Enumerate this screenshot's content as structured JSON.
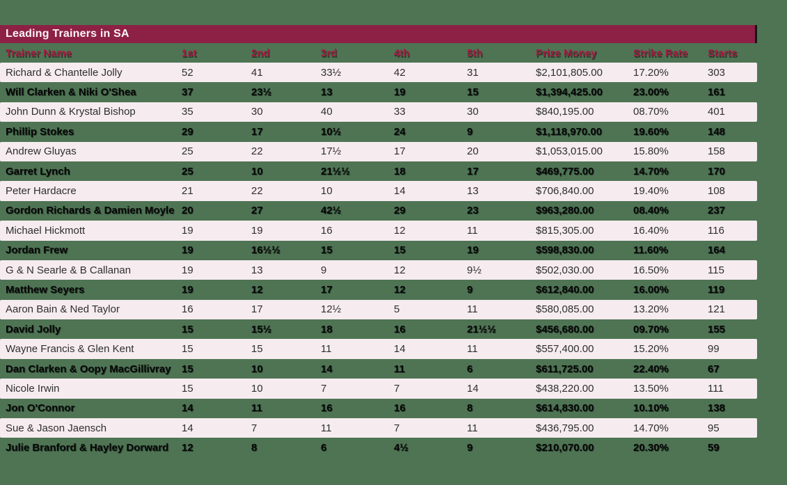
{
  "colors": {
    "background_green": "#4E7454",
    "title_bar_maroon": "#8D2045",
    "header_text_crimson": "#A21D41",
    "row_pink": "#F6ECEF",
    "title_text": "#FAF5F6",
    "row_text_dark": "#2E2E2E"
  },
  "chart_data": {
    "type": "table",
    "title": "Leading Trainers in SA",
    "columns": [
      "Trainer Name",
      "1st",
      "2nd",
      "3rd",
      "4th",
      "5th",
      "Prize Money",
      "Strike Rate",
      "Starts"
    ],
    "rows": [
      [
        "Richard & Chantelle Jolly",
        "52",
        "41",
        "33½",
        "42",
        "31",
        "$2,101,805.00",
        "17.20%",
        "303"
      ],
      [
        "Will Clarken & Niki O'Shea",
        "37",
        "23½",
        "13",
        "19",
        "15",
        "$1,394,425.00",
        "23.00%",
        "161"
      ],
      [
        "John Dunn & Krystal Bishop",
        "35",
        "30",
        "40",
        "33",
        "30",
        "$840,195.00",
        "08.70%",
        "401"
      ],
      [
        "Phillip Stokes",
        "29",
        "17",
        "10½",
        "24",
        "9",
        "$1,118,970.00",
        "19.60%",
        "148"
      ],
      [
        "Andrew Gluyas",
        "25",
        "22",
        "17½",
        "17",
        "20",
        "$1,053,015.00",
        "15.80%",
        "158"
      ],
      [
        "Garret Lynch",
        "25",
        "10",
        "21½½",
        "18",
        "17",
        "$469,775.00",
        "14.70%",
        "170"
      ],
      [
        "Peter Hardacre",
        "21",
        "22",
        "10",
        "14",
        "13",
        "$706,840.00",
        "19.40%",
        "108"
      ],
      [
        "Gordon Richards & Damien Moyle",
        "20",
        "27",
        "42½",
        "29",
        "23",
        "$963,280.00",
        "08.40%",
        "237"
      ],
      [
        "Michael Hickmott",
        "19",
        "19",
        "16",
        "12",
        "11",
        "$815,305.00",
        "16.40%",
        "116"
      ],
      [
        "Jordan Frew",
        "19",
        "16½½",
        "15",
        "15",
        "19",
        "$598,830.00",
        "11.60%",
        "164"
      ],
      [
        "G & N Searle & B Callanan",
        "19",
        "13",
        "9",
        "12",
        "9½",
        "$502,030.00",
        "16.50%",
        "115"
      ],
      [
        "Matthew Seyers",
        "19",
        "12",
        "17",
        "12",
        "9",
        "$612,840.00",
        "16.00%",
        "119"
      ],
      [
        "Aaron Bain & Ned Taylor",
        "16",
        "17",
        "12½",
        "5",
        "11",
        "$580,085.00",
        "13.20%",
        "121"
      ],
      [
        "David Jolly",
        "15",
        "15½",
        "18",
        "16",
        "21½½",
        "$456,680.00",
        "09.70%",
        "155"
      ],
      [
        "Wayne Francis & Glen Kent",
        "15",
        "15",
        "11",
        "14",
        "11",
        "$557,400.00",
        "15.20%",
        "99"
      ],
      [
        "Dan Clarken & Oopy MacGillivray",
        "15",
        "10",
        "14",
        "11",
        "6",
        "$611,725.00",
        "22.40%",
        "67"
      ],
      [
        "Nicole Irwin",
        "15",
        "10",
        "7",
        "7",
        "14",
        "$438,220.00",
        "13.50%",
        "111"
      ],
      [
        "Jon O'Connor",
        "14",
        "11",
        "16",
        "16",
        "8",
        "$614,830.00",
        "10.10%",
        "138"
      ],
      [
        "Sue & Jason Jaensch",
        "14",
        "7",
        "11",
        "7",
        "11",
        "$436,795.00",
        "14.70%",
        "95"
      ],
      [
        "Julie Branford & Hayley Dorward",
        "12",
        "8",
        "6",
        "4½",
        "9",
        "$210,070.00",
        "20.30%",
        "59"
      ]
    ]
  }
}
